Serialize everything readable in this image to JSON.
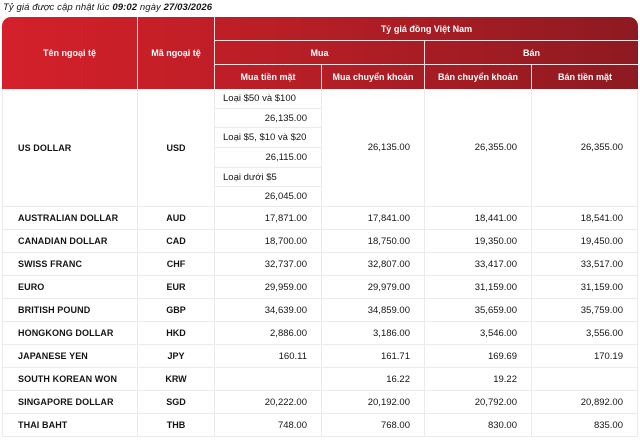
{
  "updated_note": {
    "prefix": "Tỷ giá được cập nhật lúc ",
    "time": "09:02",
    "middle": " ngày ",
    "date": "27/03/2026"
  },
  "colors": {
    "header_gradient_start": "#d5202a",
    "header_gradient_end": "#8e1a21",
    "row_border": "#ebebeb",
    "text": "#141414"
  },
  "table": {
    "headers": {
      "currency_name": "Tên ngoại tệ",
      "currency_code": "Mã ngoại tệ",
      "vnd_rate": "Tỷ giá đồng Việt Nam",
      "buy": "Mua",
      "sell": "Bán",
      "buy_cash": "Mua tiền mặt",
      "buy_transfer": "Mua chuyển khoản",
      "sell_transfer": "Bán chuyển khoản",
      "sell_cash": "Bán tiền mặt"
    },
    "usd_row": {
      "name": "US DOLLAR",
      "code": "USD",
      "buy_cash_tiers": [
        {
          "label": "Loại $50 và $100",
          "value": "26,135.00"
        },
        {
          "label": "Loại $5, $10 và $20",
          "value": "26,115.00"
        },
        {
          "label": "Loại dưới $5",
          "value": "26,045.00"
        }
      ],
      "buy_transfer": "26,135.00",
      "sell_transfer": "26,355.00",
      "sell_cash": "26,355.00"
    },
    "rows": [
      {
        "name": "AUSTRALIAN DOLLAR",
        "code": "AUD",
        "buy_cash": "17,871.00",
        "buy_transfer": "17,841.00",
        "sell_transfer": "18,441.00",
        "sell_cash": "18,541.00"
      },
      {
        "name": "CANADIAN DOLLAR",
        "code": "CAD",
        "buy_cash": "18,700.00",
        "buy_transfer": "18,750.00",
        "sell_transfer": "19,350.00",
        "sell_cash": "19,450.00"
      },
      {
        "name": "SWISS FRANC",
        "code": "CHF",
        "buy_cash": "32,737.00",
        "buy_transfer": "32,807.00",
        "sell_transfer": "33,417.00",
        "sell_cash": "33,517.00"
      },
      {
        "name": "EURO",
        "code": "EUR",
        "buy_cash": "29,959.00",
        "buy_transfer": "29,979.00",
        "sell_transfer": "31,159.00",
        "sell_cash": "31,159.00"
      },
      {
        "name": "BRITISH POUND",
        "code": "GBP",
        "buy_cash": "34,639.00",
        "buy_transfer": "34,859.00",
        "sell_transfer": "35,659.00",
        "sell_cash": "35,759.00"
      },
      {
        "name": "HONGKONG DOLLAR",
        "code": "HKD",
        "buy_cash": "2,886.00",
        "buy_transfer": "3,186.00",
        "sell_transfer": "3,546.00",
        "sell_cash": "3,556.00"
      },
      {
        "name": "JAPANESE YEN",
        "code": "JPY",
        "buy_cash": "160.11",
        "buy_transfer": "161.71",
        "sell_transfer": "169.69",
        "sell_cash": "170.19"
      },
      {
        "name": "SOUTH KOREAN WON",
        "code": "KRW",
        "buy_cash": "",
        "buy_transfer": "16.22",
        "sell_transfer": "19.22",
        "sell_cash": ""
      },
      {
        "name": "SINGAPORE DOLLAR",
        "code": "SGD",
        "buy_cash": "20,222.00",
        "buy_transfer": "20,192.00",
        "sell_transfer": "20,792.00",
        "sell_cash": "20,892.00"
      },
      {
        "name": "THAI BAHT",
        "code": "THB",
        "buy_cash": "748.00",
        "buy_transfer": "768.00",
        "sell_transfer": "830.00",
        "sell_cash": "835.00"
      }
    ]
  }
}
